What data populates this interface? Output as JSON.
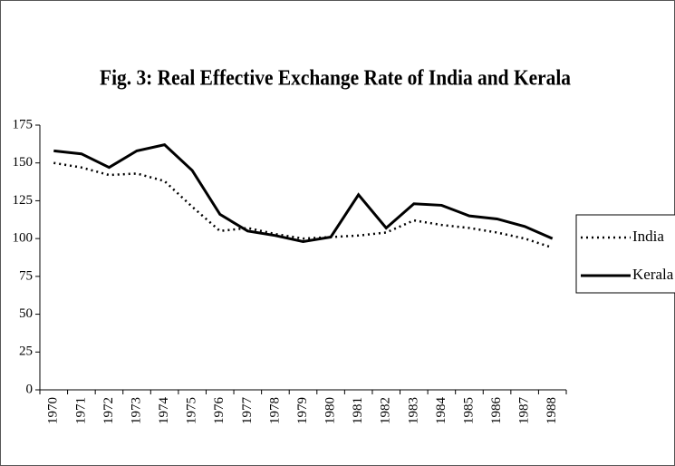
{
  "chart_data": {
    "type": "line",
    "title": "Fig. 3: Real Effective Exchange Rate of India and Kerala",
    "categories": [
      "1970",
      "1971",
      "1972",
      "1973",
      "1974",
      "1975",
      "1976",
      "1977",
      "1978",
      "1979",
      "1980",
      "1981",
      "1982",
      "1983",
      "1984",
      "1985",
      "1986",
      "1987",
      "1988"
    ],
    "series": [
      {
        "name": "India",
        "color": "#000000",
        "dash": "dotted",
        "values": [
          150,
          147,
          142,
          143,
          138,
          121,
          105,
          107,
          103,
          100,
          101,
          102,
          104,
          112,
          109,
          107,
          104,
          100,
          94
        ]
      },
      {
        "name": "Kerala",
        "color": "#000000",
        "dash": "solid",
        "values": [
          158,
          156,
          147,
          158,
          162,
          145,
          116,
          105,
          102,
          98,
          101,
          129,
          107,
          123,
          122,
          115,
          113,
          108,
          100
        ]
      }
    ],
    "ylim": [
      0,
      175
    ],
    "yticks": [
      0,
      25,
      50,
      75,
      100,
      125,
      150,
      175
    ],
    "grid": false,
    "legend": "right"
  }
}
